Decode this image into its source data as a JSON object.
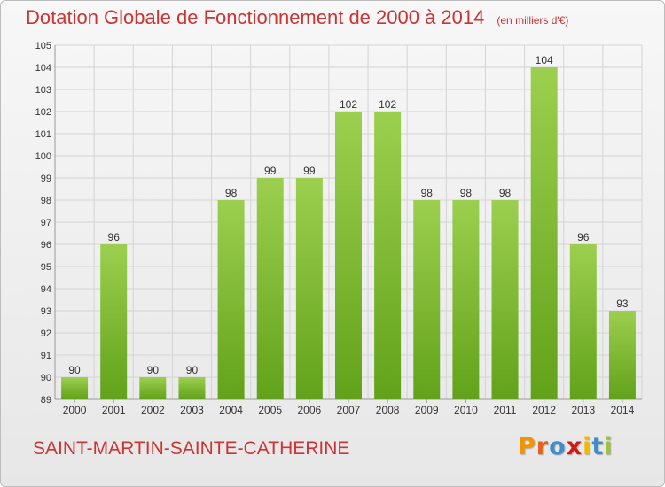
{
  "header": {
    "title": "Dotation Globale de Fonctionnement de 2000 à 2014",
    "unit": "(en milliers d'€)"
  },
  "footer": {
    "place": "SAINT-MARTIN-SAINTE-CATHERINE",
    "logo": "Proxiti"
  },
  "colors": {
    "title": "#cc3333",
    "bar_top": "#9ccf4f",
    "bar_bottom": "#62a21a",
    "grid": "#d4d4d4",
    "logo_letters": [
      "#f29400",
      "#e8611a",
      "#3a8fd0",
      "#d01b1b",
      "#f2b800",
      "#3a8fd0",
      "#9bc43a"
    ]
  },
  "chart_data": {
    "type": "bar",
    "title": "Dotation Globale de Fonctionnement de 2000 à 2014",
    "subtitle": "(en milliers d'€)",
    "categories": [
      "2000",
      "2001",
      "2002",
      "2003",
      "2004",
      "2005",
      "2006",
      "2007",
      "2008",
      "2009",
      "2010",
      "2011",
      "2012",
      "2013",
      "2014"
    ],
    "values": [
      90,
      96,
      90,
      90,
      98,
      99,
      99,
      102,
      102,
      98,
      98,
      98,
      104,
      96,
      93
    ],
    "xlabel": "",
    "ylabel": "",
    "ylim": [
      89,
      105
    ],
    "yticks": [
      89,
      90,
      91,
      92,
      93,
      94,
      95,
      96,
      97,
      98,
      99,
      100,
      101,
      102,
      103,
      104,
      105
    ],
    "grid": true,
    "data_labels": true
  }
}
